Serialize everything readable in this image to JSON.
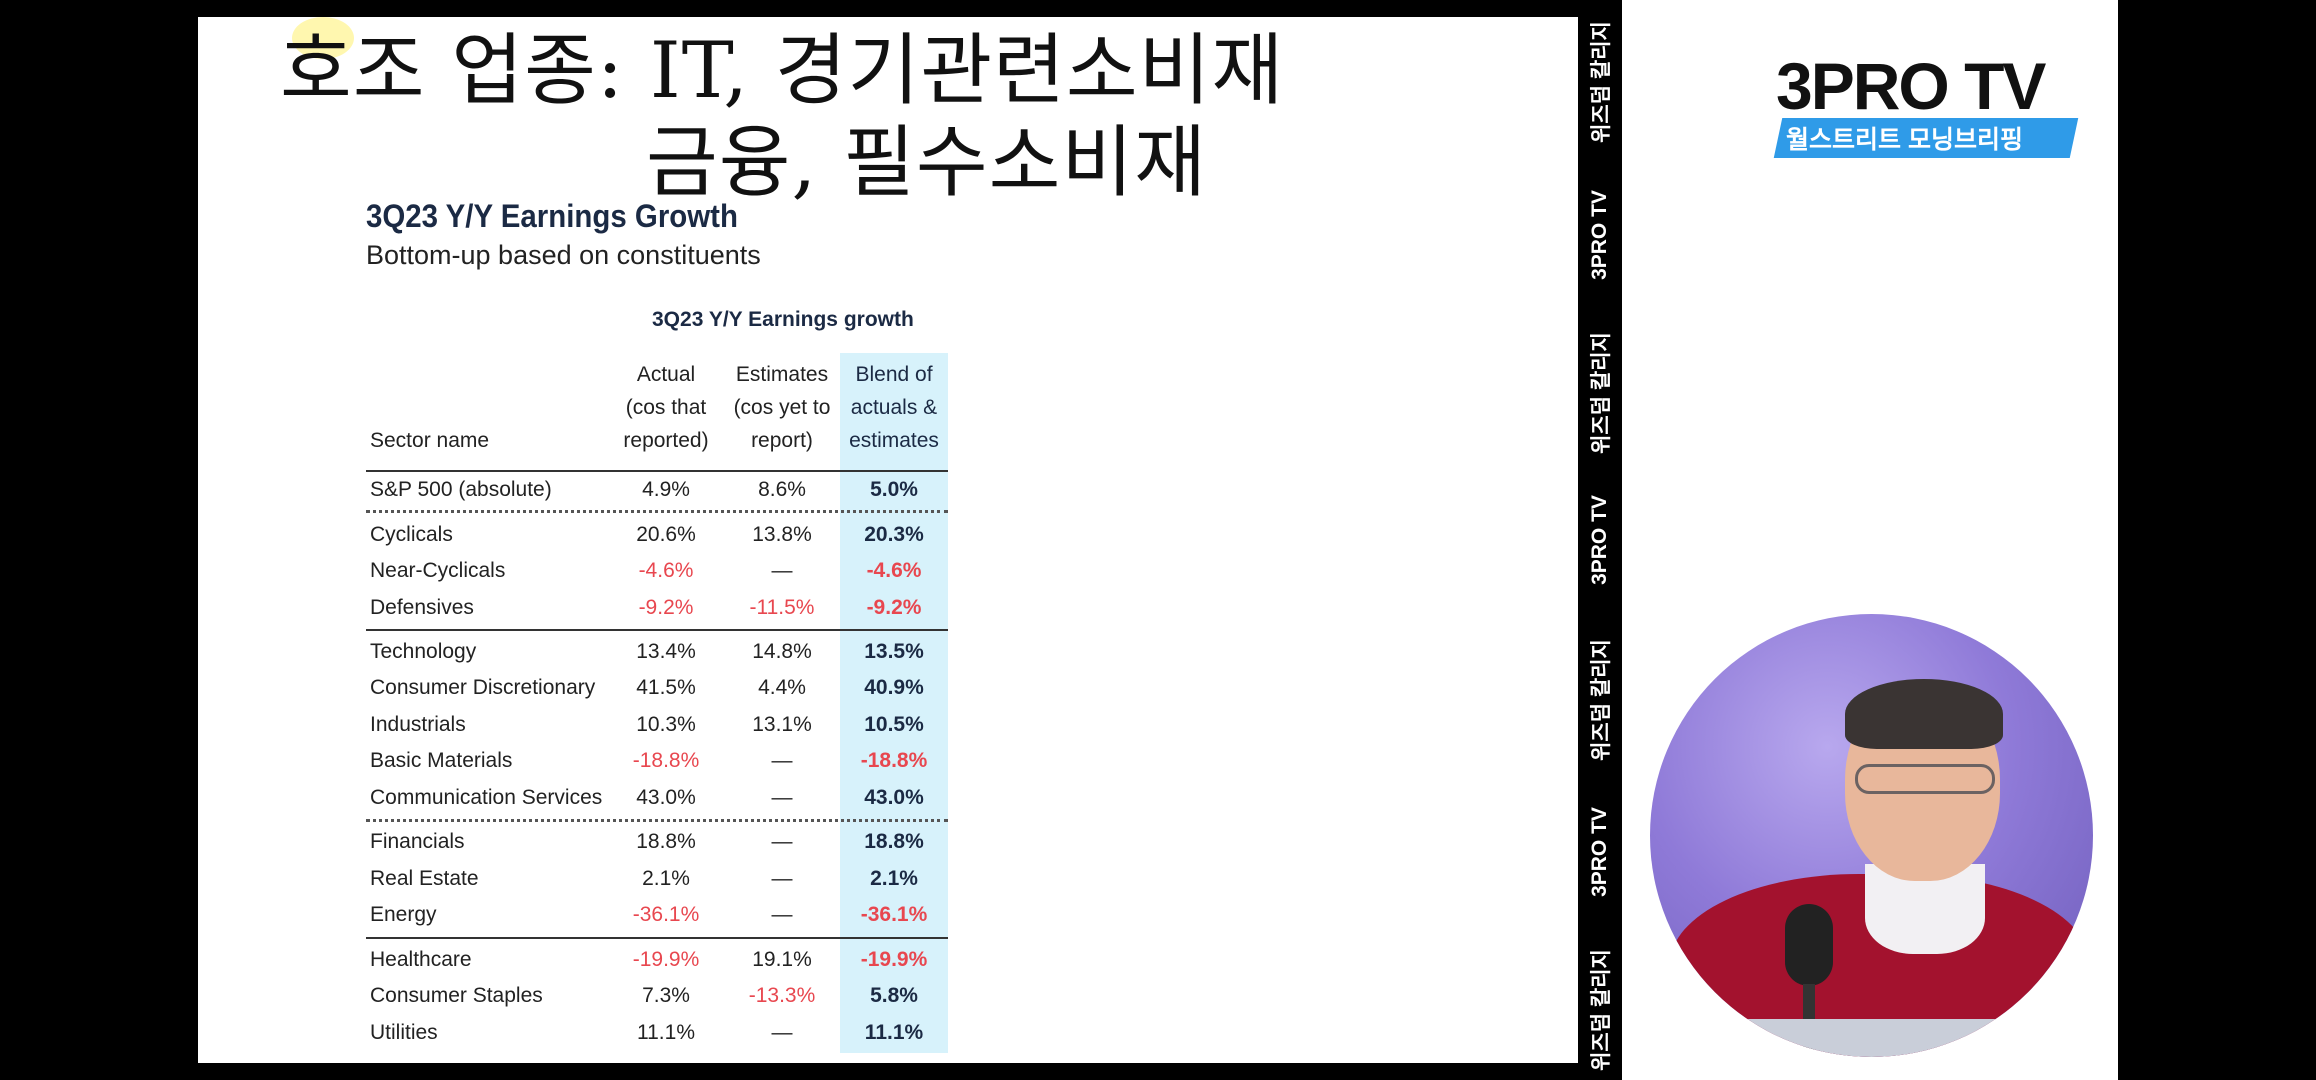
{
  "slide": {
    "title_line1": "호조 업종: IT, 경기관련소비재",
    "title_line2": "금융, 필수소비재"
  },
  "chart_data": {
    "type": "table",
    "title": "3Q23 Y/Y Earnings Growth",
    "subtitle": "Bottom-up based on constituents",
    "caption": "3Q23 Y/Y Earnings growth",
    "columns": [
      "Sector name",
      "Actual (cos that reported)",
      "Estimates (cos yet to report)",
      "Blend of actuals & estimates"
    ],
    "header_lines": {
      "actual": [
        "Actual",
        "(cos that",
        "reported)"
      ],
      "estimates": [
        "Estimates",
        "(cos yet to",
        "report)"
      ],
      "blend": [
        "Blend of",
        "actuals &",
        "estimates"
      ]
    },
    "rows": [
      {
        "name": "S&P 500 (absolute)",
        "actual": "4.9%",
        "estimates": "8.6%",
        "blend": "5.0%",
        "neg": [
          false,
          false,
          false
        ]
      },
      {
        "name": "Cyclicals",
        "actual": "20.6%",
        "estimates": "13.8%",
        "blend": "20.3%",
        "neg": [
          false,
          false,
          false
        ]
      },
      {
        "name": "Near-Cyclicals",
        "actual": "-4.6%",
        "estimates": "—",
        "blend": "-4.6%",
        "neg": [
          true,
          false,
          true
        ]
      },
      {
        "name": "Defensives",
        "actual": "-9.2%",
        "estimates": "-11.5%",
        "blend": "-9.2%",
        "neg": [
          true,
          true,
          true
        ]
      },
      {
        "name": "Technology",
        "actual": "13.4%",
        "estimates": "14.8%",
        "blend": "13.5%",
        "neg": [
          false,
          false,
          false
        ]
      },
      {
        "name": "Consumer Discretionary",
        "actual": "41.5%",
        "estimates": "4.4%",
        "blend": "40.9%",
        "neg": [
          false,
          false,
          false
        ]
      },
      {
        "name": "Industrials",
        "actual": "10.3%",
        "estimates": "13.1%",
        "blend": "10.5%",
        "neg": [
          false,
          false,
          false
        ]
      },
      {
        "name": "Basic Materials",
        "actual": "-18.8%",
        "estimates": "—",
        "blend": "-18.8%",
        "neg": [
          true,
          false,
          true
        ]
      },
      {
        "name": "Communication Services",
        "actual": "43.0%",
        "estimates": "—",
        "blend": "43.0%",
        "neg": [
          false,
          false,
          false
        ]
      },
      {
        "name": "Financials",
        "actual": "18.8%",
        "estimates": "—",
        "blend": "18.8%",
        "neg": [
          false,
          false,
          false
        ]
      },
      {
        "name": "Real Estate",
        "actual": "2.1%",
        "estimates": "—",
        "blend": "2.1%",
        "neg": [
          false,
          false,
          false
        ]
      },
      {
        "name": "Energy",
        "actual": "-36.1%",
        "estimates": "—",
        "blend": "-36.1%",
        "neg": [
          true,
          false,
          true
        ]
      },
      {
        "name": "Healthcare",
        "actual": "-19.9%",
        "estimates": "19.1%",
        "blend": "-19.9%",
        "neg": [
          true,
          false,
          true
        ]
      },
      {
        "name": "Consumer Staples",
        "actual": "7.3%",
        "estimates": "-13.3%",
        "blend": "5.8%",
        "neg": [
          false,
          true,
          false
        ]
      },
      {
        "name": "Utilities",
        "actual": "11.1%",
        "estimates": "—",
        "blend": "11.1%",
        "neg": [
          false,
          false,
          false
        ]
      }
    ],
    "colors": {
      "negative": "#e8474f",
      "blend_highlight": "#d7f2fb"
    }
  },
  "side_strip": {
    "labels": [
      "위즈덤 칼리지",
      "3PRO TV",
      "위즈덤 칼리지",
      "3PRO TV",
      "위즈덤 칼리지",
      "3PRO TV",
      "위즈덤 칼리지"
    ]
  },
  "brand": {
    "logo": "3PRO TV",
    "program": "월스트리트 모닝브리핑",
    "accent_color": "#2f9be8"
  },
  "video": {
    "description_icon": "presenter-video-icon"
  }
}
